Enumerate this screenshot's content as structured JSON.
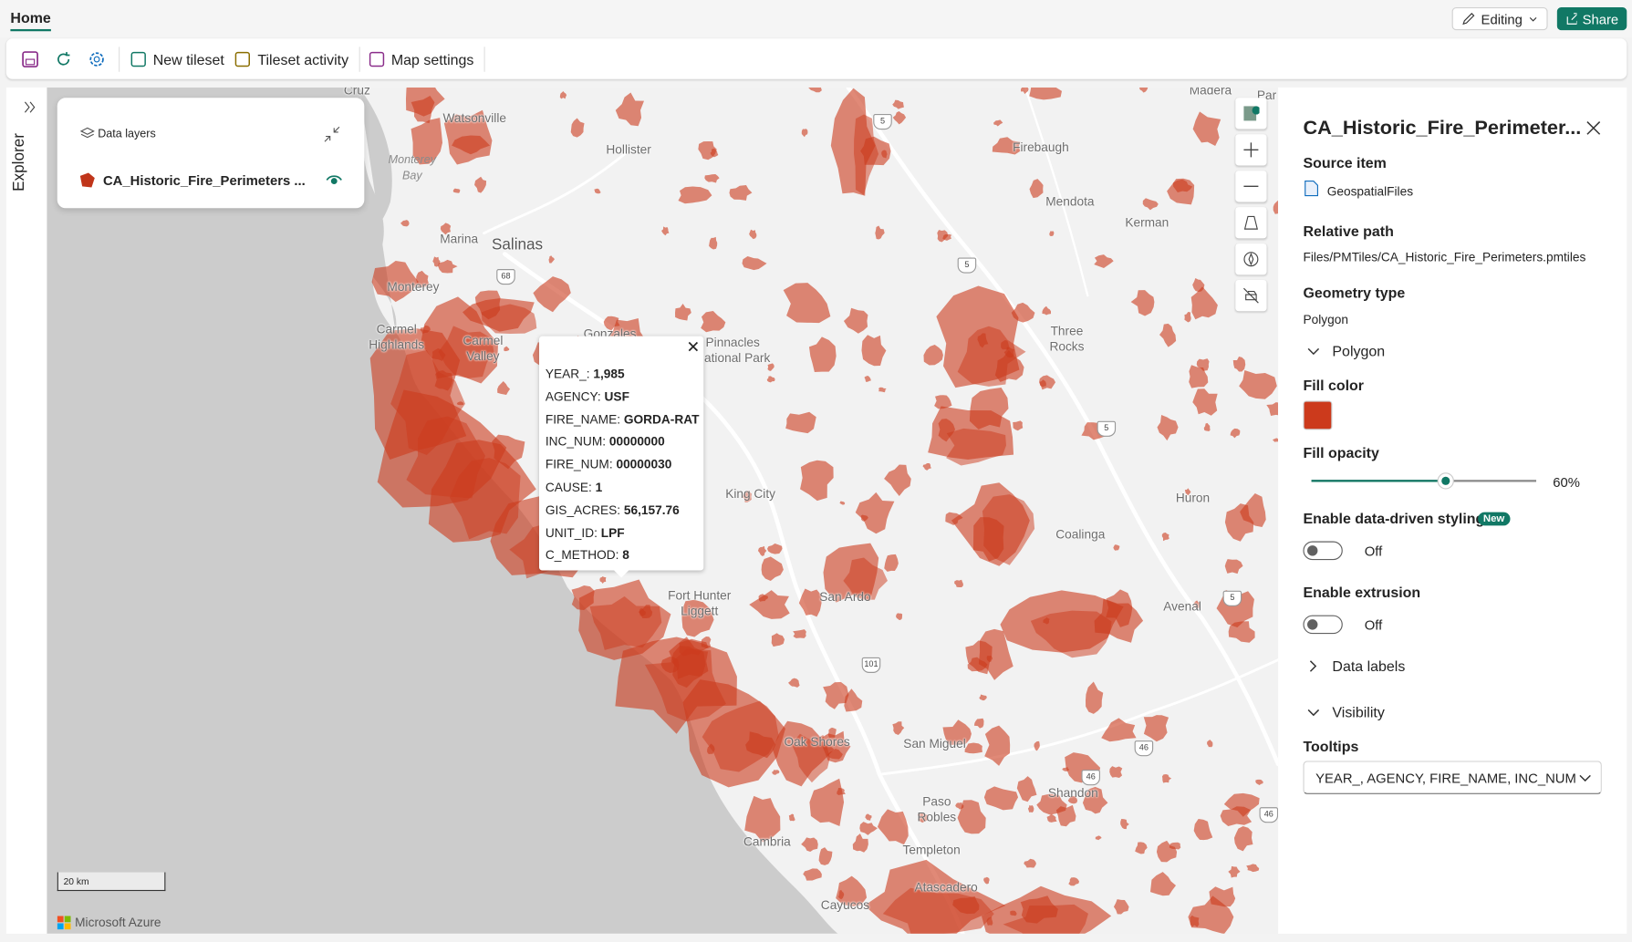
{
  "tab": "Home",
  "header_actions": {
    "editing": "Editing",
    "share": "Share"
  },
  "toolbar": [
    "New tileset",
    "Tileset activity",
    "Map settings"
  ],
  "explorer": "Explorer",
  "data_layers": {
    "title": "Data layers",
    "layer": "CA_Historic_Fire_Perimeters ..."
  },
  "popup": {
    "rows": [
      [
        "YEAR_:",
        "1,985"
      ],
      [
        "AGENCY:",
        "USF"
      ],
      [
        "FIRE_NAME:",
        "GORDA-RAT"
      ],
      [
        "INC_NUM:",
        "00000000"
      ],
      [
        "FIRE_NUM:",
        "00000030"
      ],
      [
        "CAUSE:",
        "1"
      ],
      [
        "GIS_ACRES:",
        "56,157.76"
      ],
      [
        "UNIT_ID:",
        "LPF"
      ],
      [
        "C_METHOD:",
        "8"
      ]
    ]
  },
  "map_labels": [
    "Cruz",
    "Watsonville",
    "Monterey\nBay",
    "Hollister",
    "Madera",
    "Firebaugh",
    "Mendota",
    "Kerman",
    "Marina",
    "Salinas",
    "Monterey",
    "Carmel\nHighlands",
    "Carmel\nValley",
    "Gonzales",
    "Pinnacles\nNational Park",
    "Three\nRocks",
    "King City",
    "Huron",
    "Coalinga",
    "Fort Hunter\nLiggett",
    "San Ardo",
    "Avenal",
    "Oak Shores",
    "San Miguel",
    "Shandon",
    "Paso\nRobles",
    "Cambria",
    "Templeton",
    "Atascadero",
    "Cayucos",
    "Par"
  ],
  "road_shields": [
    "5",
    "5",
    "5",
    "5",
    "68",
    "101",
    "46",
    "46",
    "46"
  ],
  "scale": "20 km",
  "attribution": "Microsoft Azure",
  "panel": {
    "title": "CA_Historic_Fire_Perimeter...",
    "source_item_label": "Source item",
    "source_item": "GeospatialFiles",
    "relative_path_label": "Relative path",
    "relative_path": "Files/PMTiles/CA_Historic_Fire_Perimeters.pmtiles",
    "geometry_type_label": "Geometry type",
    "geometry_type": "Polygon",
    "polygon_section": "Polygon",
    "fill_color_label": "Fill color",
    "fill_color": "#cc3a1c",
    "fill_opacity_label": "Fill opacity",
    "fill_opacity": "60%",
    "data_driven_label": "Enable data-driven styling",
    "new_badge": "New",
    "data_driven_state": "Off",
    "extrusion_label": "Enable extrusion",
    "extrusion_state": "Off",
    "data_labels_section": "Data labels",
    "visibility_section": "Visibility",
    "tooltips_label": "Tooltips",
    "tooltips_value": "YEAR_, AGENCY, FIRE_NAME, INC_NUM"
  }
}
